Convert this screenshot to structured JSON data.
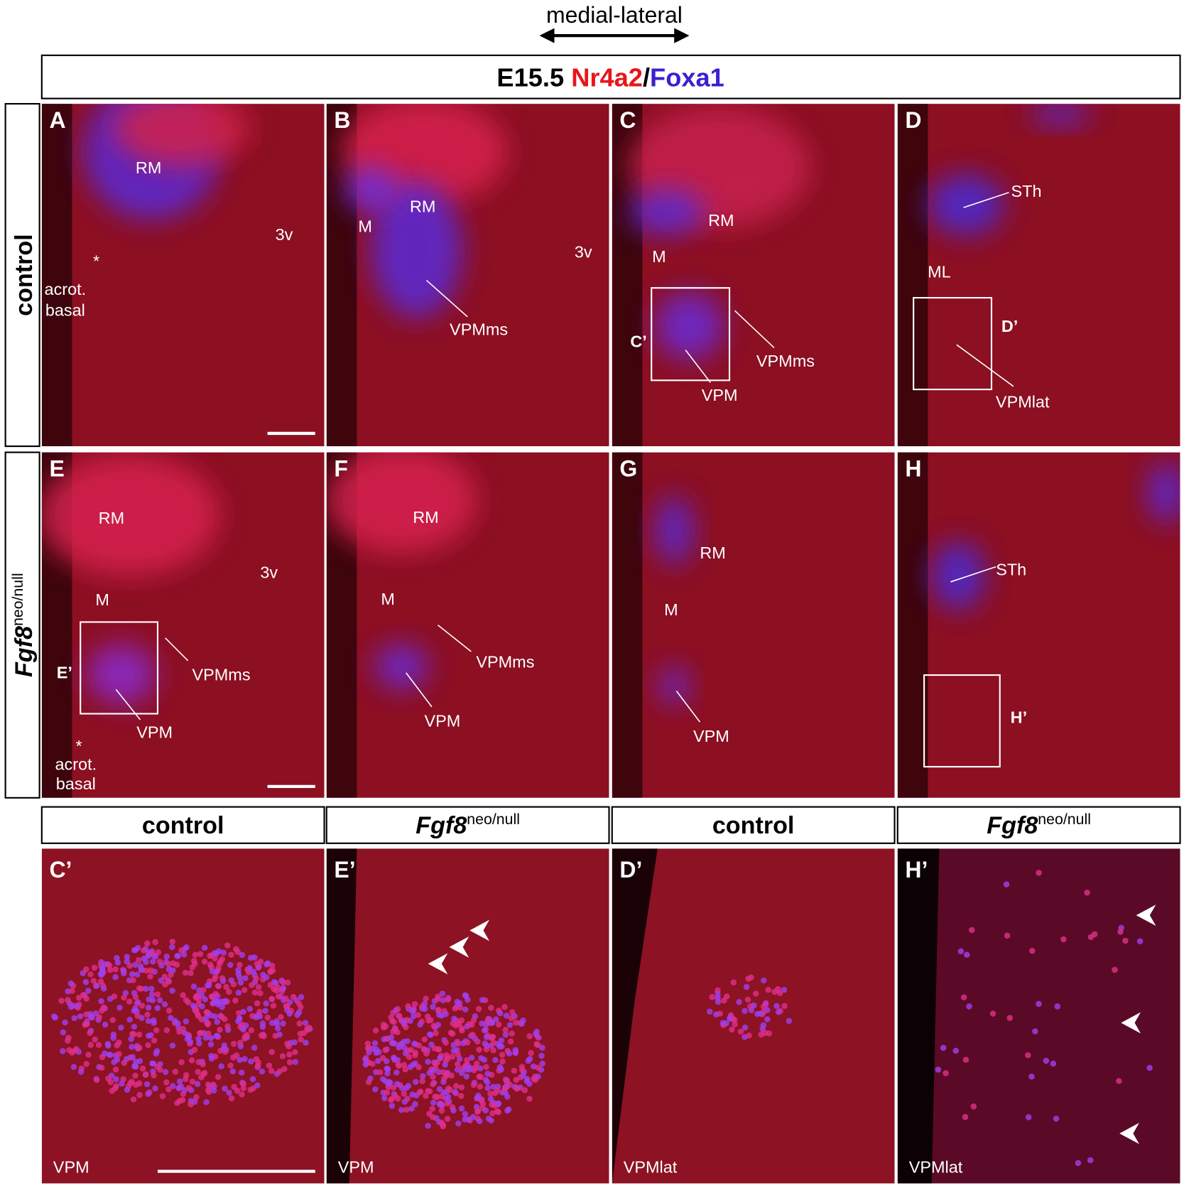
{
  "header": {
    "axis_label": "medial-lateral",
    "title": {
      "stage": "E15.5",
      "marker1": "Nr4a2",
      "separator": "/",
      "marker2": "Foxa1"
    }
  },
  "row_labels": [
    {
      "text": "control"
    },
    {
      "gene": "Fgf8",
      "genotype": "neo/null"
    }
  ],
  "panels": [
    {
      "letter": "A",
      "labels": [
        "RM",
        "3v",
        "*",
        "acrot.",
        "basal"
      ]
    },
    {
      "letter": "B",
      "labels": [
        "M",
        "RM",
        "3v",
        "VPMms"
      ]
    },
    {
      "letter": "C",
      "labels": [
        "RM",
        "M",
        "C’",
        "VPMms",
        "VPM"
      ]
    },
    {
      "letter": "D",
      "labels": [
        "STh",
        "ML",
        "D’",
        "VPMlat"
      ]
    },
    {
      "letter": "E",
      "labels": [
        "RM",
        "3v",
        "M",
        "E’",
        "VPMms",
        "VPM",
        "*",
        "acrot.",
        "basal"
      ]
    },
    {
      "letter": "F",
      "labels": [
        "RM",
        "M",
        "VPMms",
        "VPM"
      ]
    },
    {
      "letter": "G",
      "labels": [
        "RM",
        "M",
        "VPM"
      ]
    },
    {
      "letter": "H",
      "labels": [
        "STh",
        "H’"
      ]
    }
  ],
  "inset_headers": [
    {
      "text": "control"
    },
    {
      "gene": "Fgf8",
      "genotype": "neo/null"
    },
    {
      "text": "control"
    },
    {
      "gene": "Fgf8",
      "genotype": "neo/null"
    }
  ],
  "insets": [
    {
      "letter": "C’",
      "label": "VPM"
    },
    {
      "letter": "E’",
      "label": "VPM"
    },
    {
      "letter": "D’",
      "label": "VPMlat"
    },
    {
      "letter": "H’",
      "label": "VPMlat"
    }
  ]
}
